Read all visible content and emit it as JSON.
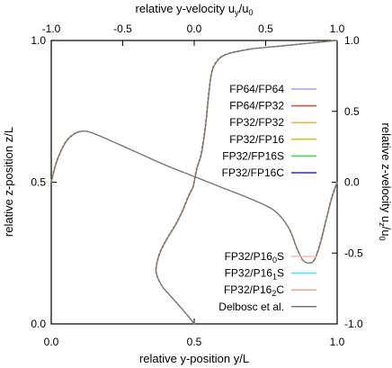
{
  "chart_data": {
    "type": "line",
    "xlabel_bottom": "relative y-position y/L",
    "xlabel_top": "relative y-velocity u",
    "xlabel_top_sub": "y",
    "xlabel_top_tail": "/u",
    "xlabel_top_sub2": "0",
    "ylabel_left": "relative z-position z/L",
    "ylabel_right": "relative z-velocity u",
    "ylabel_right_sub": "z",
    "ylabel_right_tail": "/u",
    "ylabel_right_sub2": "0",
    "x_bottom_range": [
      0,
      1
    ],
    "y_left_range": [
      0,
      1
    ],
    "x_top_range": [
      -1,
      1
    ],
    "y_right_range": [
      -1,
      1
    ],
    "x_bottom_ticks": [
      "0.0",
      "0.5",
      "1.0"
    ],
    "y_left_ticks": [
      "0.0",
      "0.5",
      "1.0"
    ],
    "x_top_ticks": [
      "-1.0",
      "-0.5",
      "0.0",
      "0.5",
      "1.0"
    ],
    "y_right_ticks": [
      "-1.0",
      "-0.5",
      "0.0",
      "0.5",
      "1.0"
    ],
    "legend_upper": [
      {
        "name": "FP64/FP64",
        "color": "#b59ce8"
      },
      {
        "name": "FP64/FP32",
        "color": "#e8452a"
      },
      {
        "name": "FP32/FP32",
        "color": "#f2b23a"
      },
      {
        "name": "FP32/FP16",
        "color": "#c4c82a"
      },
      {
        "name": "FP32/FP16S",
        "color": "#3fd84a"
      },
      {
        "name": "FP32/FP16C",
        "color": "#2a2ad8"
      }
    ],
    "legend_lower": [
      {
        "name": "FP32/P16",
        "sub": "0",
        "tail": "S",
        "color": "#f4c0b0"
      },
      {
        "name": "FP32/P16",
        "sub": "1",
        "tail": "S",
        "color": "#4ae8e8"
      },
      {
        "name": "FP32/P16",
        "sub": "2",
        "tail": "C",
        "color": "#e8a890"
      },
      {
        "name": "Delbosc et al.",
        "sub": "",
        "tail": "",
        "color": "#777777"
      }
    ],
    "series": [
      {
        "description": "uy vs z (x: top axis uy/u0, y: left axis z/L)",
        "points": [
          [
            0.0,
            0.0
          ],
          [
            -0.03,
            0.02
          ],
          [
            -0.08,
            0.05
          ],
          [
            -0.15,
            0.09
          ],
          [
            -0.22,
            0.13
          ],
          [
            -0.26,
            0.17
          ],
          [
            -0.265,
            0.2
          ],
          [
            -0.24,
            0.25
          ],
          [
            -0.19,
            0.3
          ],
          [
            -0.13,
            0.35
          ],
          [
            -0.08,
            0.4
          ],
          [
            -0.04,
            0.45
          ],
          [
            -0.01,
            0.48
          ],
          [
            0.0,
            0.5
          ],
          [
            0.02,
            0.55
          ],
          [
            0.05,
            0.6
          ],
          [
            0.08,
            0.7
          ],
          [
            0.1,
            0.8
          ],
          [
            0.12,
            0.88
          ],
          [
            0.15,
            0.92
          ],
          [
            0.22,
            0.95
          ],
          [
            0.4,
            0.97
          ],
          [
            0.6,
            0.98
          ],
          [
            0.8,
            0.99
          ],
          [
            1.0,
            1.0
          ]
        ]
      },
      {
        "description": "uz vs y (x: bottom axis y/L, y: right axis uz/u0)",
        "points": [
          [
            0.0,
            0.0
          ],
          [
            0.02,
            0.15
          ],
          [
            0.05,
            0.28
          ],
          [
            0.08,
            0.34
          ],
          [
            0.11,
            0.36
          ],
          [
            0.14,
            0.35
          ],
          [
            0.2,
            0.3
          ],
          [
            0.3,
            0.21
          ],
          [
            0.4,
            0.12
          ],
          [
            0.5,
            0.04
          ],
          [
            0.6,
            -0.04
          ],
          [
            0.7,
            -0.12
          ],
          [
            0.78,
            -0.2
          ],
          [
            0.83,
            -0.32
          ],
          [
            0.86,
            -0.47
          ],
          [
            0.88,
            -0.55
          ],
          [
            0.9,
            -0.57
          ],
          [
            0.92,
            -0.55
          ],
          [
            0.94,
            -0.44
          ],
          [
            0.96,
            -0.28
          ],
          [
            0.98,
            -0.12
          ],
          [
            1.0,
            0.0
          ]
        ]
      }
    ]
  }
}
